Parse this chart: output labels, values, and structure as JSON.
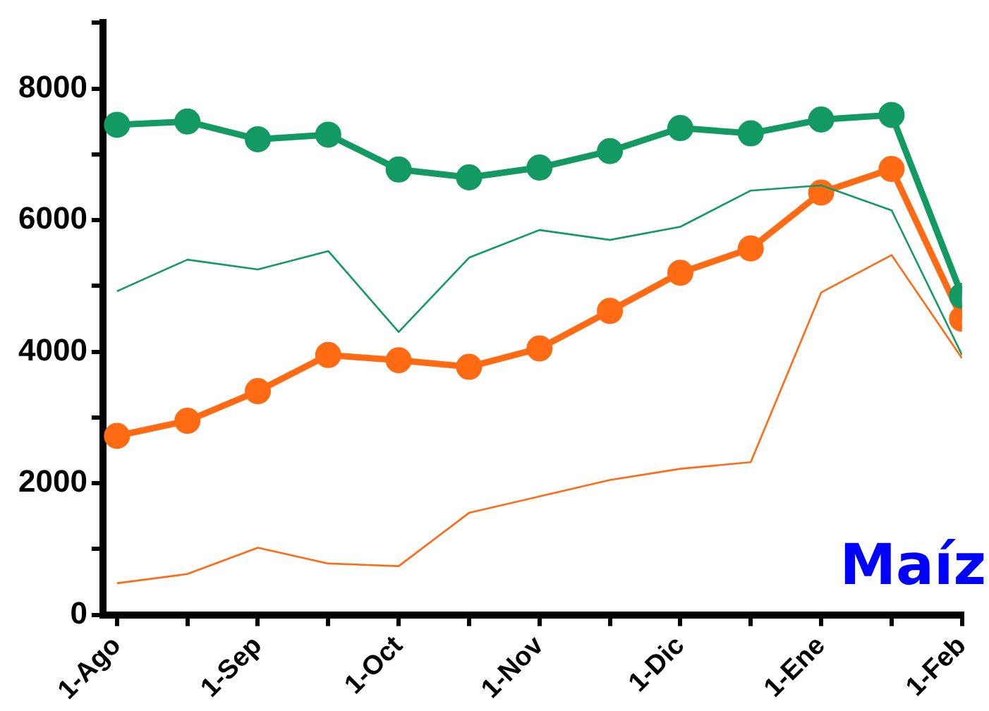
{
  "chart_data": {
    "type": "line",
    "categories": [
      "1-Ago",
      null,
      "1-Sep",
      null,
      "1-Oct",
      null,
      "1-Nov",
      null,
      "1-Dic",
      null,
      "1-Ene",
      null,
      "1-Feb"
    ],
    "series": [
      {
        "color": "#129a62",
        "marker": "circle",
        "values": [
          7450,
          7500,
          7230,
          7300,
          6770,
          6650,
          6800,
          7050,
          7400,
          7320,
          7530,
          7600,
          4850
        ]
      },
      {
        "color": "#129a62",
        "marker": "none",
        "values": [
          4920,
          5400,
          5250,
          5530,
          4300,
          5430,
          5850,
          5700,
          5900,
          6450,
          6530,
          6150,
          3950
        ]
      },
      {
        "color": "#ff6a13",
        "marker": "circle",
        "values": [
          2720,
          2950,
          3400,
          3950,
          3870,
          3770,
          4050,
          4620,
          5200,
          5570,
          6420,
          6780,
          4500
        ]
      },
      {
        "color": "#ff6a13",
        "marker": "none",
        "values": [
          480,
          620,
          1020,
          780,
          740,
          1550,
          1800,
          2050,
          2220,
          2320,
          4900,
          5470,
          3900
        ]
      }
    ],
    "ylim": [
      0,
      9000
    ],
    "yticks": [
      0,
      {
        "value": 1000,
        "label": null
      },
      2000,
      {
        "value": 3000,
        "label": null
      },
      4000,
      {
        "value": 5000,
        "label": null
      },
      6000,
      {
        "value": 7000,
        "label": null
      },
      8000,
      {
        "value": 9000,
        "label": null
      }
    ],
    "grid": false,
    "legend": false,
    "annotations": [
      "Maíz"
    ]
  }
}
